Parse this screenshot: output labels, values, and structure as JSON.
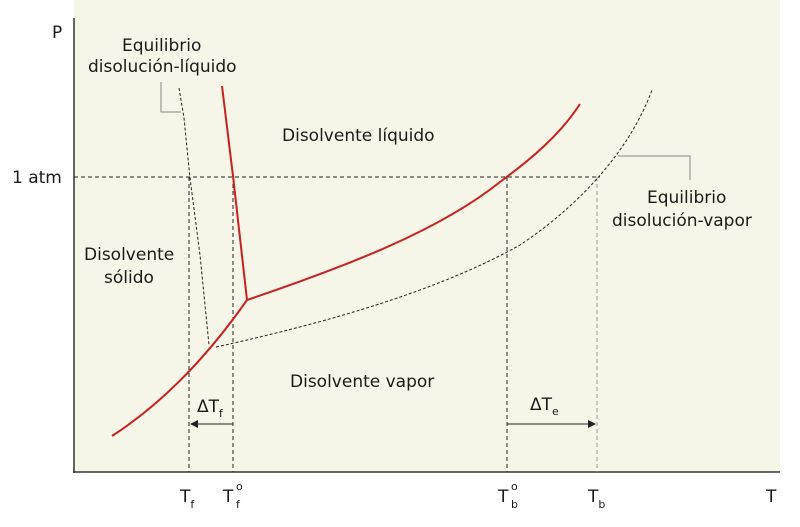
{
  "axes": {
    "y_label": "P",
    "x_label": "T",
    "pressure_mark": "1 atm"
  },
  "regions": {
    "liquid": "Disolvente líquido",
    "solid_line1": "Disolvente",
    "solid_line2": "sólido",
    "vapor": "Disolvente vapor"
  },
  "callouts": {
    "solution_liquid_line1": "Equilibrio",
    "solution_liquid_line2": "disolución-líquido",
    "solution_vapor_line1": "Equilibrio",
    "solution_vapor_line2": "disolución-vapor"
  },
  "temperature_ticks": {
    "tf": {
      "main": "T",
      "sub": "f",
      "sup": ""
    },
    "tf0": {
      "main": "T",
      "sub": "f",
      "sup": "o"
    },
    "tb0": {
      "main": "T",
      "sub": "b",
      "sup": "o"
    },
    "tb": {
      "main": "T",
      "sub": "b",
      "sup": ""
    }
  },
  "deltas": {
    "freezing": {
      "main": "ΔT",
      "sub": "f"
    },
    "boiling": {
      "main": "ΔT",
      "sub": "e"
    }
  },
  "colors": {
    "pure_solvent_curve": "#c8201e",
    "plot_background": "#f5f5e8",
    "solution_curve": "#1a1a1a"
  }
}
